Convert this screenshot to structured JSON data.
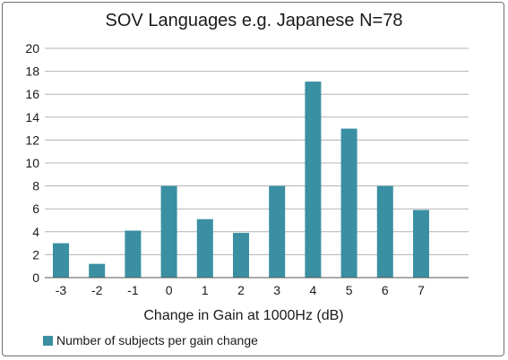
{
  "chart_data": {
    "type": "bar",
    "title": "SOV Languages e.g. Japanese N=78",
    "xlabel": "Change in Gain at 1000Hz (dB)",
    "ylabel": "",
    "categories": [
      "-3",
      "-2",
      "-1",
      "0",
      "1",
      "2",
      "3",
      "4",
      "5",
      "6",
      "7"
    ],
    "series": [
      {
        "name": "Number of subjects per gain change",
        "values": [
          3,
          1.2,
          4.1,
          8,
          5.1,
          3.9,
          8,
          17.1,
          13,
          8,
          5.9
        ]
      }
    ],
    "ylim": [
      0,
      20
    ],
    "yticks": [
      0,
      2,
      4,
      6,
      8,
      10,
      12,
      14,
      16,
      18,
      20
    ],
    "grid": true,
    "legend_position": "bottom-left",
    "colors": {
      "bar": "#3a8fa3",
      "grid": "#b3b3b3",
      "axis": "#555555"
    }
  }
}
